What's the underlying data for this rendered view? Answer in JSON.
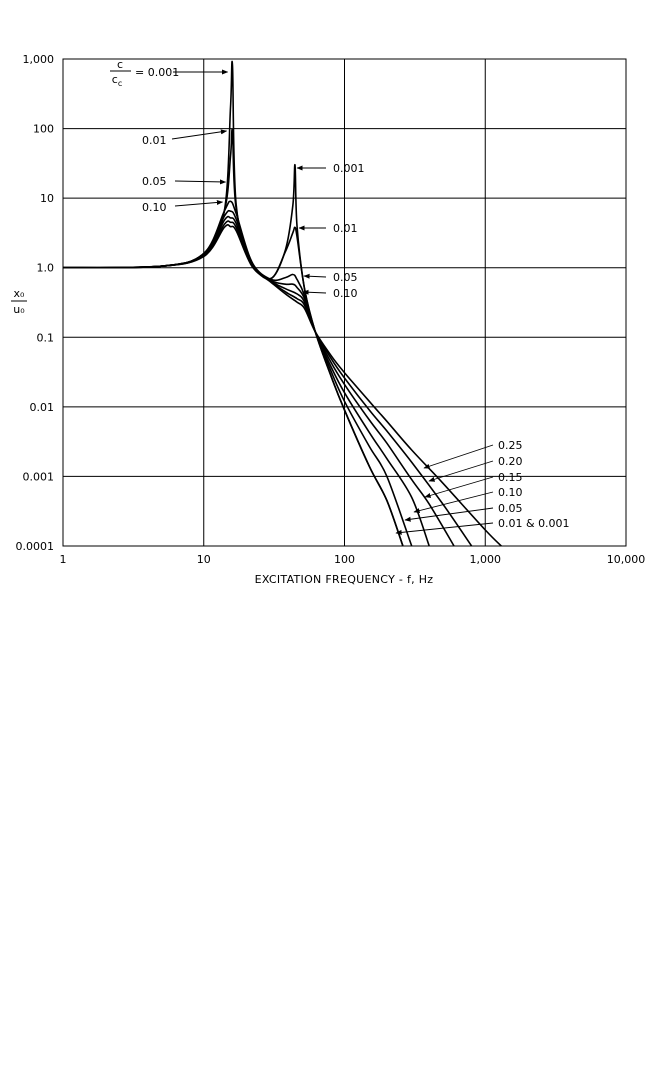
{
  "chart_data": {
    "type": "line",
    "xlabel": "EXCITATION FREQUENCY - f, Hz",
    "x_scale": "log",
    "y_scale": "log",
    "xlim": [
      1,
      10000
    ],
    "ylim": [
      0.0001,
      1000
    ],
    "grid": true,
    "x_ticks": [
      1,
      10,
      100,
      1000,
      10000
    ],
    "x_tick_labels": [
      "1",
      "10",
      "100",
      "1,000",
      "10,000"
    ],
    "y_ticks": [
      0.0001,
      0.001,
      0.01,
      0.1,
      1,
      10,
      100,
      1000
    ],
    "y_tick_labels": [
      "0.0001",
      "0.001",
      "0.01",
      "0.1",
      "1.0",
      "10",
      "100",
      "1,000"
    ],
    "ylabel_num": "x₀",
    "ylabel_den": "u₀",
    "ratio_num": "c",
    "ratio_den": "c",
    "ratio_den_sub": "c",
    "ratio_eq": "= 0.001",
    "annotations_first_peak": [
      "0.01",
      "0.05",
      "0.10"
    ],
    "annotations_second_peak": [
      "0.001",
      "0.01",
      "0.05",
      "0.10"
    ],
    "annotations_high_freq": [
      "0.25",
      "0.20",
      "0.15",
      "0.10",
      "0.05",
      "0.01 & 0.001"
    ],
    "series": [
      {
        "name": "0.001",
        "x": [
          1,
          5,
          10,
          14,
          15.5,
          16,
          17,
          22,
          30,
          38,
          43,
          44.5,
          46,
          52,
          62,
          80,
          100,
          150,
          200,
          260
        ],
        "y": [
          1.0,
          1.05,
          1.6,
          6.5,
          200,
          800,
          8,
          1.2,
          0.7,
          1.8,
          8,
          30,
          4,
          0.5,
          0.12,
          0.028,
          0.009,
          0.0014,
          0.00045,
          0.0001
        ]
      },
      {
        "name": "0.01",
        "x": [
          1,
          5,
          10,
          14,
          15.5,
          16,
          17,
          22,
          30,
          38,
          43,
          44.5,
          46,
          52,
          62,
          80,
          100,
          150,
          200,
          260
        ],
        "y": [
          1.0,
          1.05,
          1.6,
          6.5,
          40,
          90,
          7,
          1.2,
          0.7,
          1.7,
          3.2,
          3.8,
          2.8,
          0.5,
          0.12,
          0.028,
          0.009,
          0.0014,
          0.00045,
          0.0001
        ]
      },
      {
        "name": "0.05",
        "x": [
          1,
          5,
          10,
          14,
          15.5,
          17,
          22,
          30,
          38,
          43,
          46,
          52,
          62,
          80,
          100,
          150,
          200,
          300
        ],
        "y": [
          1.0,
          1.05,
          1.6,
          6.5,
          9,
          6,
          1.2,
          0.68,
          0.72,
          0.8,
          0.68,
          0.4,
          0.12,
          0.033,
          0.012,
          0.0027,
          0.001,
          0.0001
        ]
      },
      {
        "name": "0.10",
        "x": [
          1,
          5,
          10,
          14,
          15.5,
          17,
          22,
          30,
          38,
          43,
          46,
          52,
          62,
          80,
          100,
          150,
          200,
          300,
          400
        ],
        "y": [
          1.0,
          1.05,
          1.55,
          5.5,
          6.5,
          5,
          1.15,
          0.66,
          0.58,
          0.58,
          0.52,
          0.36,
          0.12,
          0.038,
          0.016,
          0.0043,
          0.0018,
          0.0005,
          0.0001
        ]
      },
      {
        "name": "0.15",
        "x": [
          1,
          5,
          10,
          14,
          15.5,
          17,
          22,
          30,
          38,
          46,
          52,
          62,
          80,
          100,
          150,
          200,
          300,
          400,
          600
        ],
        "y": [
          1.0,
          1.05,
          1.5,
          4.8,
          5.2,
          4.3,
          1.1,
          0.64,
          0.5,
          0.42,
          0.32,
          0.12,
          0.044,
          0.021,
          0.0065,
          0.003,
          0.0009,
          0.0004,
          0.0001
        ]
      },
      {
        "name": "0.20",
        "x": [
          1,
          5,
          10,
          14,
          15.5,
          17,
          22,
          30,
          38,
          46,
          52,
          62,
          80,
          100,
          150,
          200,
          300,
          500,
          800
        ],
        "y": [
          1.0,
          1.05,
          1.5,
          4.2,
          4.5,
          3.8,
          1.1,
          0.63,
          0.45,
          0.36,
          0.29,
          0.12,
          0.05,
          0.026,
          0.009,
          0.0045,
          0.0016,
          0.0004,
          0.0001
        ]
      },
      {
        "name": "0.25",
        "x": [
          1,
          5,
          10,
          14,
          15.5,
          17,
          22,
          30,
          38,
          46,
          52,
          62,
          80,
          100,
          150,
          200,
          300,
          500,
          1000,
          1300
        ],
        "y": [
          1.0,
          1.05,
          1.45,
          3.8,
          3.9,
          3.4,
          1.05,
          0.62,
          0.42,
          0.32,
          0.26,
          0.12,
          0.055,
          0.031,
          0.012,
          0.0062,
          0.0024,
          0.0008,
          0.00017,
          0.0001
        ]
      }
    ]
  }
}
